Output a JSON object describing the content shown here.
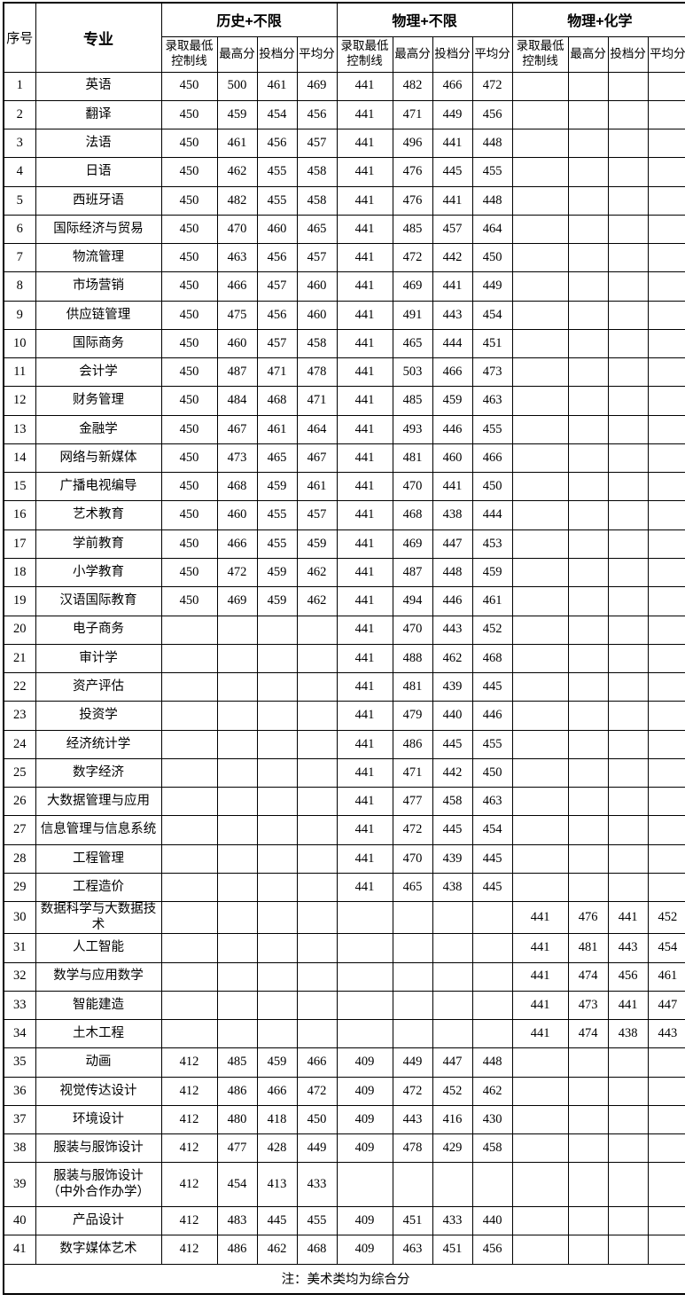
{
  "header": {
    "col_serial": "序号",
    "col_major": "专业",
    "groups": [
      {
        "label": "历史+不限"
      },
      {
        "label": "物理+不限"
      },
      {
        "label": "物理+化学"
      }
    ],
    "subcols": [
      "录取最低\n控制线",
      "最高分",
      "投档分",
      "平均分"
    ]
  },
  "rows": [
    {
      "no": "1",
      "major": "英语",
      "history": [
        "450",
        "500",
        "461",
        "469"
      ],
      "physics": [
        "441",
        "482",
        "466",
        "472"
      ],
      "phys_chem": [
        "",
        "",
        "",
        ""
      ]
    },
    {
      "no": "2",
      "major": "翻译",
      "history": [
        "450",
        "459",
        "454",
        "456"
      ],
      "physics": [
        "441",
        "471",
        "449",
        "456"
      ],
      "phys_chem": [
        "",
        "",
        "",
        ""
      ]
    },
    {
      "no": "3",
      "major": "法语",
      "history": [
        "450",
        "461",
        "456",
        "457"
      ],
      "physics": [
        "441",
        "496",
        "441",
        "448"
      ],
      "phys_chem": [
        "",
        "",
        "",
        ""
      ]
    },
    {
      "no": "4",
      "major": "日语",
      "history": [
        "450",
        "462",
        "455",
        "458"
      ],
      "physics": [
        "441",
        "476",
        "445",
        "455"
      ],
      "phys_chem": [
        "",
        "",
        "",
        ""
      ]
    },
    {
      "no": "5",
      "major": "西班牙语",
      "history": [
        "450",
        "482",
        "455",
        "458"
      ],
      "physics": [
        "441",
        "476",
        "441",
        "448"
      ],
      "phys_chem": [
        "",
        "",
        "",
        ""
      ]
    },
    {
      "no": "6",
      "major": "国际经济与贸易",
      "history": [
        "450",
        "470",
        "460",
        "465"
      ],
      "physics": [
        "441",
        "485",
        "457",
        "464"
      ],
      "phys_chem": [
        "",
        "",
        "",
        ""
      ]
    },
    {
      "no": "7",
      "major": "物流管理",
      "history": [
        "450",
        "463",
        "456",
        "457"
      ],
      "physics": [
        "441",
        "472",
        "442",
        "450"
      ],
      "phys_chem": [
        "",
        "",
        "",
        ""
      ]
    },
    {
      "no": "8",
      "major": "市场营销",
      "history": [
        "450",
        "466",
        "457",
        "460"
      ],
      "physics": [
        "441",
        "469",
        "441",
        "449"
      ],
      "phys_chem": [
        "",
        "",
        "",
        ""
      ]
    },
    {
      "no": "9",
      "major": "供应链管理",
      "history": [
        "450",
        "475",
        "456",
        "460"
      ],
      "physics": [
        "441",
        "491",
        "443",
        "454"
      ],
      "phys_chem": [
        "",
        "",
        "",
        ""
      ]
    },
    {
      "no": "10",
      "major": "国际商务",
      "history": [
        "450",
        "460",
        "457",
        "458"
      ],
      "physics": [
        "441",
        "465",
        "444",
        "451"
      ],
      "phys_chem": [
        "",
        "",
        "",
        ""
      ]
    },
    {
      "no": "11",
      "major": "会计学",
      "history": [
        "450",
        "487",
        "471",
        "478"
      ],
      "physics": [
        "441",
        "503",
        "466",
        "473"
      ],
      "phys_chem": [
        "",
        "",
        "",
        ""
      ]
    },
    {
      "no": "12",
      "major": "财务管理",
      "history": [
        "450",
        "484",
        "468",
        "471"
      ],
      "physics": [
        "441",
        "485",
        "459",
        "463"
      ],
      "phys_chem": [
        "",
        "",
        "",
        ""
      ]
    },
    {
      "no": "13",
      "major": "金融学",
      "history": [
        "450",
        "467",
        "461",
        "464"
      ],
      "physics": [
        "441",
        "493",
        "446",
        "455"
      ],
      "phys_chem": [
        "",
        "",
        "",
        ""
      ]
    },
    {
      "no": "14",
      "major": "网络与新媒体",
      "history": [
        "450",
        "473",
        "465",
        "467"
      ],
      "physics": [
        "441",
        "481",
        "460",
        "466"
      ],
      "phys_chem": [
        "",
        "",
        "",
        ""
      ]
    },
    {
      "no": "15",
      "major": "广播电视编导",
      "history": [
        "450",
        "468",
        "459",
        "461"
      ],
      "physics": [
        "441",
        "470",
        "441",
        "450"
      ],
      "phys_chem": [
        "",
        "",
        "",
        ""
      ]
    },
    {
      "no": "16",
      "major": "艺术教育",
      "history": [
        "450",
        "460",
        "455",
        "457"
      ],
      "physics": [
        "441",
        "468",
        "438",
        "444"
      ],
      "phys_chem": [
        "",
        "",
        "",
        ""
      ]
    },
    {
      "no": "17",
      "major": "学前教育",
      "history": [
        "450",
        "466",
        "455",
        "459"
      ],
      "physics": [
        "441",
        "469",
        "447",
        "453"
      ],
      "phys_chem": [
        "",
        "",
        "",
        ""
      ]
    },
    {
      "no": "18",
      "major": "小学教育",
      "history": [
        "450",
        "472",
        "459",
        "462"
      ],
      "physics": [
        "441",
        "487",
        "448",
        "459"
      ],
      "phys_chem": [
        "",
        "",
        "",
        ""
      ]
    },
    {
      "no": "19",
      "major": "汉语国际教育",
      "history": [
        "450",
        "469",
        "459",
        "462"
      ],
      "physics": [
        "441",
        "494",
        "446",
        "461"
      ],
      "phys_chem": [
        "",
        "",
        "",
        ""
      ]
    },
    {
      "no": "20",
      "major": "电子商务",
      "history": [
        "",
        "",
        "",
        ""
      ],
      "physics": [
        "441",
        "470",
        "443",
        "452"
      ],
      "phys_chem": [
        "",
        "",
        "",
        ""
      ]
    },
    {
      "no": "21",
      "major": "审计学",
      "history": [
        "",
        "",
        "",
        ""
      ],
      "physics": [
        "441",
        "488",
        "462",
        "468"
      ],
      "phys_chem": [
        "",
        "",
        "",
        ""
      ]
    },
    {
      "no": "22",
      "major": "资产评估",
      "history": [
        "",
        "",
        "",
        ""
      ],
      "physics": [
        "441",
        "481",
        "439",
        "445"
      ],
      "phys_chem": [
        "",
        "",
        "",
        ""
      ]
    },
    {
      "no": "23",
      "major": "投资学",
      "history": [
        "",
        "",
        "",
        ""
      ],
      "physics": [
        "441",
        "479",
        "440",
        "446"
      ],
      "phys_chem": [
        "",
        "",
        "",
        ""
      ]
    },
    {
      "no": "24",
      "major": "经济统计学",
      "history": [
        "",
        "",
        "",
        ""
      ],
      "physics": [
        "441",
        "486",
        "445",
        "455"
      ],
      "phys_chem": [
        "",
        "",
        "",
        ""
      ]
    },
    {
      "no": "25",
      "major": "数字经济",
      "history": [
        "",
        "",
        "",
        ""
      ],
      "physics": [
        "441",
        "471",
        "442",
        "450"
      ],
      "phys_chem": [
        "",
        "",
        "",
        ""
      ]
    },
    {
      "no": "26",
      "major": "大数据管理与应用",
      "history": [
        "",
        "",
        "",
        ""
      ],
      "physics": [
        "441",
        "477",
        "458",
        "463"
      ],
      "phys_chem": [
        "",
        "",
        "",
        ""
      ]
    },
    {
      "no": "27",
      "major": "信息管理与信息系统",
      "history": [
        "",
        "",
        "",
        ""
      ],
      "physics": [
        "441",
        "472",
        "445",
        "454"
      ],
      "phys_chem": [
        "",
        "",
        "",
        ""
      ]
    },
    {
      "no": "28",
      "major": "工程管理",
      "history": [
        "",
        "",
        "",
        ""
      ],
      "physics": [
        "441",
        "470",
        "439",
        "445"
      ],
      "phys_chem": [
        "",
        "",
        "",
        ""
      ]
    },
    {
      "no": "29",
      "major": "工程造价",
      "history": [
        "",
        "",
        "",
        ""
      ],
      "physics": [
        "441",
        "465",
        "438",
        "445"
      ],
      "phys_chem": [
        "",
        "",
        "",
        ""
      ]
    },
    {
      "no": "30",
      "major": "数据科学与大数据技术",
      "history": [
        "",
        "",
        "",
        ""
      ],
      "physics": [
        "",
        "",
        "",
        ""
      ],
      "phys_chem": [
        "441",
        "476",
        "441",
        "452"
      ]
    },
    {
      "no": "31",
      "major": "人工智能",
      "history": [
        "",
        "",
        "",
        ""
      ],
      "physics": [
        "",
        "",
        "",
        ""
      ],
      "phys_chem": [
        "441",
        "481",
        "443",
        "454"
      ]
    },
    {
      "no": "32",
      "major": "数学与应用数学",
      "history": [
        "",
        "",
        "",
        ""
      ],
      "physics": [
        "",
        "",
        "",
        ""
      ],
      "phys_chem": [
        "441",
        "474",
        "456",
        "461"
      ]
    },
    {
      "no": "33",
      "major": "智能建造",
      "history": [
        "",
        "",
        "",
        ""
      ],
      "physics": [
        "",
        "",
        "",
        ""
      ],
      "phys_chem": [
        "441",
        "473",
        "441",
        "447"
      ]
    },
    {
      "no": "34",
      "major": "土木工程",
      "history": [
        "",
        "",
        "",
        ""
      ],
      "physics": [
        "",
        "",
        "",
        ""
      ],
      "phys_chem": [
        "441",
        "474",
        "438",
        "443"
      ]
    },
    {
      "no": "35",
      "major": "动画",
      "history": [
        "412",
        "485",
        "459",
        "466"
      ],
      "physics": [
        "409",
        "449",
        "447",
        "448"
      ],
      "phys_chem": [
        "",
        "",
        "",
        ""
      ]
    },
    {
      "no": "36",
      "major": "视觉传达设计",
      "history": [
        "412",
        "486",
        "466",
        "472"
      ],
      "physics": [
        "409",
        "472",
        "452",
        "462"
      ],
      "phys_chem": [
        "",
        "",
        "",
        ""
      ]
    },
    {
      "no": "37",
      "major": "环境设计",
      "history": [
        "412",
        "480",
        "418",
        "450"
      ],
      "physics": [
        "409",
        "443",
        "416",
        "430"
      ],
      "phys_chem": [
        "",
        "",
        "",
        ""
      ]
    },
    {
      "no": "38",
      "major": "服装与服饰设计",
      "history": [
        "412",
        "477",
        "428",
        "449"
      ],
      "physics": [
        "409",
        "478",
        "429",
        "458"
      ],
      "phys_chem": [
        "",
        "",
        "",
        ""
      ]
    },
    {
      "no": "39",
      "major": "服装与服饰设计\n（中外合作办学）",
      "tall": true,
      "history": [
        "412",
        "454",
        "413",
        "433"
      ],
      "physics": [
        "",
        "",
        "",
        ""
      ],
      "phys_chem": [
        "",
        "",
        "",
        ""
      ]
    },
    {
      "no": "40",
      "major": "产品设计",
      "history": [
        "412",
        "483",
        "445",
        "455"
      ],
      "physics": [
        "409",
        "451",
        "433",
        "440"
      ],
      "phys_chem": [
        "",
        "",
        "",
        ""
      ]
    },
    {
      "no": "41",
      "major": "数字媒体艺术",
      "history": [
        "412",
        "486",
        "462",
        "468"
      ],
      "physics": [
        "409",
        "463",
        "451",
        "456"
      ],
      "phys_chem": [
        "",
        "",
        "",
        ""
      ]
    }
  ],
  "footer": {
    "note": "注：美术类均为综合分"
  }
}
